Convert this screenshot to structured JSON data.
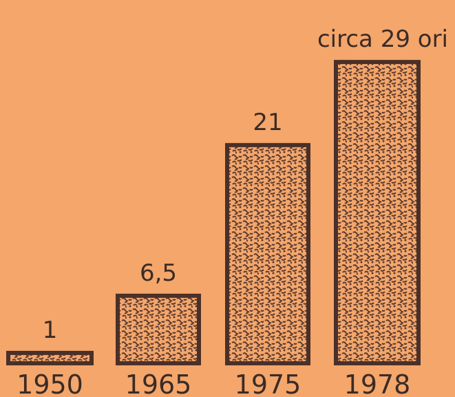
{
  "chart_data": {
    "type": "bar",
    "categories": [
      "1950",
      "1965",
      "1975",
      "1978"
    ],
    "values": [
      1,
      6.5,
      21,
      29
    ],
    "data_labels": [
      "1",
      "6,5",
      "21",
      "circa 29 ori"
    ],
    "title": "",
    "xlabel": "",
    "ylabel": "",
    "ylim": [
      0,
      30
    ],
    "grid": false,
    "legend": "none"
  },
  "colors": {
    "background": "#f4a66b",
    "bar_outline": "#4a3028",
    "bar_speckle": "#5a3b30",
    "text": "#3b2b25"
  }
}
